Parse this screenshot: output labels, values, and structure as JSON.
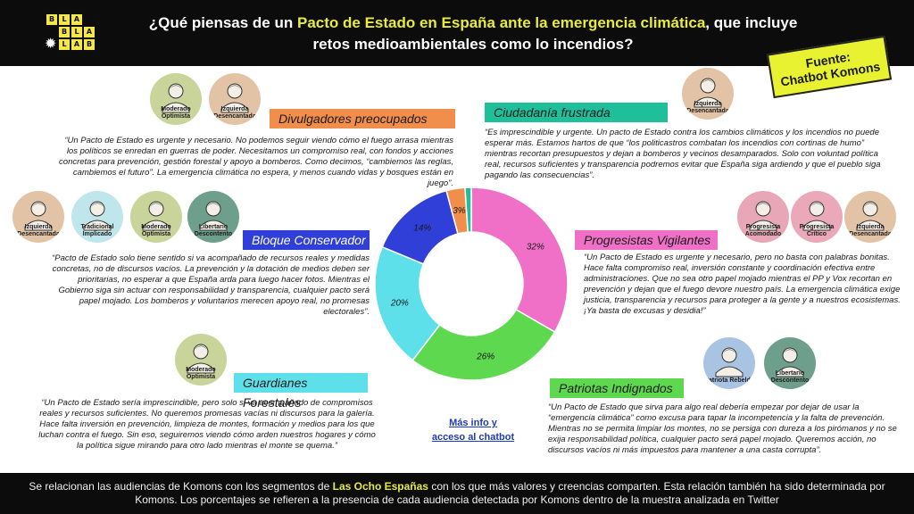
{
  "header": {
    "logo_letters": [
      [
        "B",
        "L",
        "A"
      ],
      [
        "B",
        "L",
        "A"
      ],
      [
        "L",
        "A",
        "B"
      ]
    ],
    "title_part1": "¿Qué piensas de un ",
    "title_highlight": "Pacto de Estado en España ante la emergencia climática",
    "title_part2": ", que incluye",
    "title_line2": "retos medioambientales como lo incendios?"
  },
  "source_badge": {
    "line1": "Fuente:",
    "line2": "Chatbot Komons"
  },
  "segments": {
    "divulgadores": {
      "label": "Divulgadores preocupados",
      "color": "#f28e4b",
      "quote": "“Un Pacto de Estado es urgente y necesario. No podemos seguir viendo cómo el fuego arrasa mientras los políticos se enredan en guerras de poder. Necesitamos un compromiso real, con fondos y acciones concretas para prevención, gestión forestal y apoyo a bomberos. Como decimos, “cambiemos las reglas, cambiemos el futuro”. La emergencia climática no espera, y menos cuando vidas y bosques están en juego”.",
      "avatars": [
        {
          "label": "Moderado Optimista",
          "bg": "#c8d49a"
        },
        {
          "label": "Izquierda Desencantada",
          "bg": "#e3c3a6"
        }
      ]
    },
    "ciudadania": {
      "label": "Ciudadanía frustrada",
      "color": "#1fbf9a",
      "quote": "“Es imprescindible y urgente. Un pacto de Estado contra los cambios climáticos y los incendios no puede esperar más. Estamos hartos de que “los politicastros combatan los incendios con cortinas de humo” mientras recortan presupuestos y dejan a bomberos y vecinos desamparados. Solo con voluntad política real, recursos suficientes y transparencia podremos evitar que España siga ardiendo y que el pueblo siga pagando las consecuencias”.",
      "avatars": [
        {
          "label": "Izquierda Desencantada",
          "bg": "#e3c3a6"
        }
      ]
    },
    "bloque": {
      "label": "Bloque Conservador",
      "color": "#2f3fd8",
      "quote": "“Pacto de Estado solo tiene sentido si va acompañado de recursos reales y medidas concretas, no de discursos vacíos. La prevención y la dotación de medios deben ser prioritarias, no esperar a que España arda para luego hacer fotos. Mientras el Gobierno siga sin actuar con responsabilidad y transparencia, cualquier pacto será papel mojado. Los bomberos y voluntarios merecen apoyo real, no promesas electorales”.",
      "avatars": [
        {
          "label": "Izquierda Desencantada",
          "bg": "#e3c3a6"
        },
        {
          "label": "Tradicional Implicado",
          "bg": "#bfe6ea"
        },
        {
          "label": "Moderado Optimista",
          "bg": "#c8d49a"
        },
        {
          "label": "Libertario Descontento",
          "bg": "#6e9e8c"
        }
      ]
    },
    "progresistas": {
      "label": "Progresistas Vigilantes",
      "color": "#f070c8",
      "quote": "“Un Pacto de Estado es urgente y necesario, pero no basta con palabras bonitas. Hace falta compromiso real, inversión constante y coordinación efectiva entre administraciones. Que no sea otro papel mojado mientras el PP y Vox recortan en prevención y dejan que el fuego devore nuestro país. La emergencia climática exige justicia, transparencia y recursos para proteger a la gente y a nuestros ecosistemas. ¡Ya basta de excusas y desidia!”",
      "avatars": [
        {
          "label": "Progresista Acomodado",
          "bg": "#e8a7b6"
        },
        {
          "label": "Progresista Crítico",
          "bg": "#eba8b8"
        },
        {
          "label": "Izquierda Desencantada",
          "bg": "#e3c3a6"
        }
      ]
    },
    "guardianes": {
      "label": "Guardianes Forestales",
      "color": "#5ee0ea",
      "quote": "“Un Pacto de Estado sería imprescindible, pero solo si va acompañado de compromisos reales y recursos suficientes. No queremos promesas vacías ni discursos para la galería. Hace falta inversión en prevención, limpieza de montes, formación y medios para los que luchan contra el fuego. Sin eso, seguiremos viendo cómo arden nuestros hogares y cómo la política sigue mirando para otro lado mientras el monte se quema.”",
      "avatars": [
        {
          "label": "Moderado Optimista",
          "bg": "#c8d49a"
        }
      ]
    },
    "patriotas": {
      "label": "Patriotas Indignados",
      "color": "#5ed84f",
      "quote": "“Un Pacto de Estado que sirva para algo real debería empezar por dejar de usar la “emergencia climática” como excusa para tapar la incompetencia y la falta de prevención. Mientras no se permita limpiar los montes, no se persiga con dureza a los pirómanos y no se exija responsabilidad política, cualquier pacto será papel mojado. Queremos acción, no discursos vacíos ni más impuestos para mantener a una casta corrupta”.",
      "avatars": [
        {
          "label": "Patriota Rebelde",
          "bg": "#a9c3e3"
        },
        {
          "label": "Libertario Descontento",
          "bg": "#6e9e8c"
        }
      ]
    }
  },
  "chart_data": {
    "type": "pie",
    "variant": "donut",
    "slices": [
      {
        "label": "Progresistas Vigilantes",
        "value": 32,
        "display": "32%",
        "color": "#f070c8"
      },
      {
        "label": "Patriotas Indignados",
        "value": 26,
        "display": "26%",
        "color": "#5ed84f"
      },
      {
        "label": "Guardianes Forestales",
        "value": 20,
        "display": "20%",
        "color": "#5ee0ea"
      },
      {
        "label": "Bloque Conservador",
        "value": 14,
        "display": "14%",
        "color": "#2f3fd8"
      },
      {
        "label": "Divulgadores preocupados",
        "value": 3,
        "display": "3%",
        "color": "#f28e4b"
      },
      {
        "label": "Ciudadanía frustrada",
        "value": 1,
        "display": "1%",
        "color": "#1fbf9a"
      }
    ]
  },
  "link": {
    "line1": "Más info y",
    "line2": "acceso al chatbot"
  },
  "footer": {
    "part1": "Se relacionan las audiencias de Komons con los segmentos de ",
    "highlight": "Las Ocho Españas",
    "part2": " con los que más valores y creencias comparten. Esta relación también ha sido determinada por Komons. Los porcentajes se refieren a la presencia de cada audiencia detectada por Komons dentro de la muestra analizada en Twitter"
  }
}
